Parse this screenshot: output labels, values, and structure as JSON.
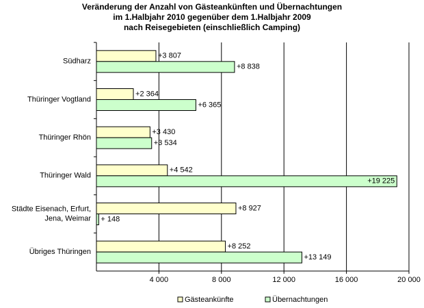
{
  "chart_data": {
    "type": "hbar",
    "title": [
      "Veränderung der Anzahl von Gästeankünften  und Übernachtungen",
      "im 1.Halbjahr 2010 gegenüber dem 1.Halbjahr 2009",
      "nach Reisegebieten (einschließlich Camping)"
    ],
    "categories": [
      "Südharz",
      "Thüringer Vogtland",
      "Thüringer Rhön",
      "Thüringer Wald",
      [
        "Städte Eisenach, Erfurt,",
        "Jena, Weimar"
      ],
      "Übriges Thüringen"
    ],
    "series": [
      {
        "name": "Gästeankünfte",
        "color": "#ffffcc",
        "values": [
          3807,
          2364,
          3430,
          4542,
          8927,
          8252
        ],
        "value_labels": [
          "+3 807",
          "+2 364",
          "+3 430",
          "+4 542",
          "+8 927",
          "+8 252"
        ]
      },
      {
        "name": "Übernachtungen",
        "color": "#ccffcc",
        "values": [
          8838,
          6365,
          3534,
          19225,
          148,
          13149
        ],
        "value_labels": [
          "+8 838",
          "+6 365",
          "+3 534",
          "+19 225",
          "+ 148",
          "+13 149"
        ]
      }
    ],
    "xlim": [
      0,
      20000
    ],
    "xticks": [
      {
        "value": 4000,
        "label": "4 000"
      },
      {
        "value": 8000,
        "label": "8 000"
      },
      {
        "value": 12000,
        "label": "12 000"
      },
      {
        "value": 16000,
        "label": "16 000"
      },
      {
        "value": 20000,
        "label": "20 000"
      }
    ],
    "grid": true,
    "legend": "bottom"
  }
}
